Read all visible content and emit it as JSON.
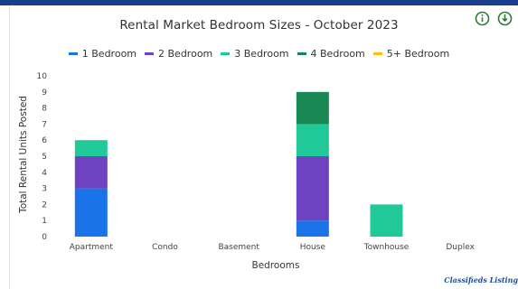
{
  "chart_data": {
    "type": "bar",
    "stacked": true,
    "title": "Rental Market Bedroom Sizes - October 2023",
    "xlabel": "Bedrooms",
    "ylabel": "Total Rental Units Posted",
    "ylim": [
      0,
      10
    ],
    "yticks": [
      "0",
      "1",
      "2",
      "3",
      "4",
      "5",
      "6",
      "7",
      "8",
      "9",
      "10"
    ],
    "categories": [
      "Apartment",
      "Condo",
      "Basement",
      "House",
      "Townhouse",
      "Duplex"
    ],
    "legend_position": "top",
    "grid": false,
    "series": [
      {
        "name": "1 Bedroom",
        "color": "#1a73e8",
        "values": [
          3,
          0,
          0,
          1,
          0,
          0
        ]
      },
      {
        "name": "2 Bedroom",
        "color": "#6f42c1",
        "values": [
          2,
          0,
          0,
          4,
          0,
          0
        ]
      },
      {
        "name": "3 Bedroom",
        "color": "#20c997",
        "values": [
          1,
          0,
          0,
          2,
          2,
          0
        ]
      },
      {
        "name": "4 Bedroom",
        "color": "#198754",
        "values": [
          0,
          0,
          0,
          2,
          0,
          0
        ]
      },
      {
        "name": "5+ Bedroom",
        "color": "#ffc107",
        "values": [
          0,
          0,
          0,
          0,
          0,
          0
        ]
      }
    ]
  },
  "toolbar": {
    "info_icon": "info-icon",
    "download_icon": "download-icon",
    "accent_color": "#2e7d32"
  },
  "credits": "Classifieds Listing"
}
